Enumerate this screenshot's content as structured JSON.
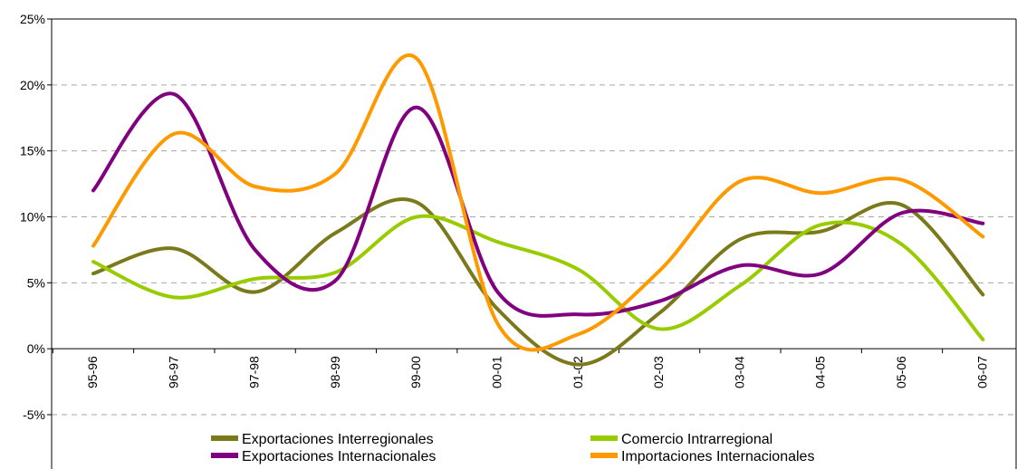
{
  "chart_data": {
    "type": "line",
    "categories": [
      "95-96",
      "96-97",
      "97-98",
      "98-99",
      "99-00",
      "00-01",
      "01-02",
      "02-03",
      "03-04",
      "04-05",
      "05-06",
      "06-07"
    ],
    "y_tick_labels": [
      "-5%",
      "0%",
      "5%",
      "10%",
      "15%",
      "20%",
      "25%"
    ],
    "ylim": [
      -5,
      25
    ],
    "grid": true,
    "legend_position": "bottom",
    "series": [
      {
        "name": "Exportaciones Interregionales",
        "color": "#7a7a1a",
        "values": [
          5.7,
          7.6,
          4.3,
          8.8,
          11.1,
          3.0,
          -1.2,
          2.7,
          8.3,
          8.9,
          10.9,
          4.1
        ]
      },
      {
        "name": "Comercio Intrarregional",
        "color": "#99cc00",
        "values": [
          6.6,
          3.9,
          5.3,
          5.8,
          10.0,
          8.1,
          6.0,
          1.5,
          4.8,
          9.4,
          7.9,
          0.7
        ]
      },
      {
        "name": "Exportaciones Internacionales",
        "color": "#800080",
        "values": [
          12.0,
          19.3,
          7.5,
          5.2,
          18.3,
          4.3,
          2.6,
          3.6,
          6.3,
          5.7,
          10.3,
          9.5
        ]
      },
      {
        "name": "Importaciones Internacionales",
        "color": "#ff9900",
        "values": [
          7.8,
          16.3,
          12.3,
          13.3,
          22.0,
          1.9,
          1.1,
          5.9,
          12.7,
          11.8,
          12.8,
          8.5
        ]
      }
    ]
  }
}
